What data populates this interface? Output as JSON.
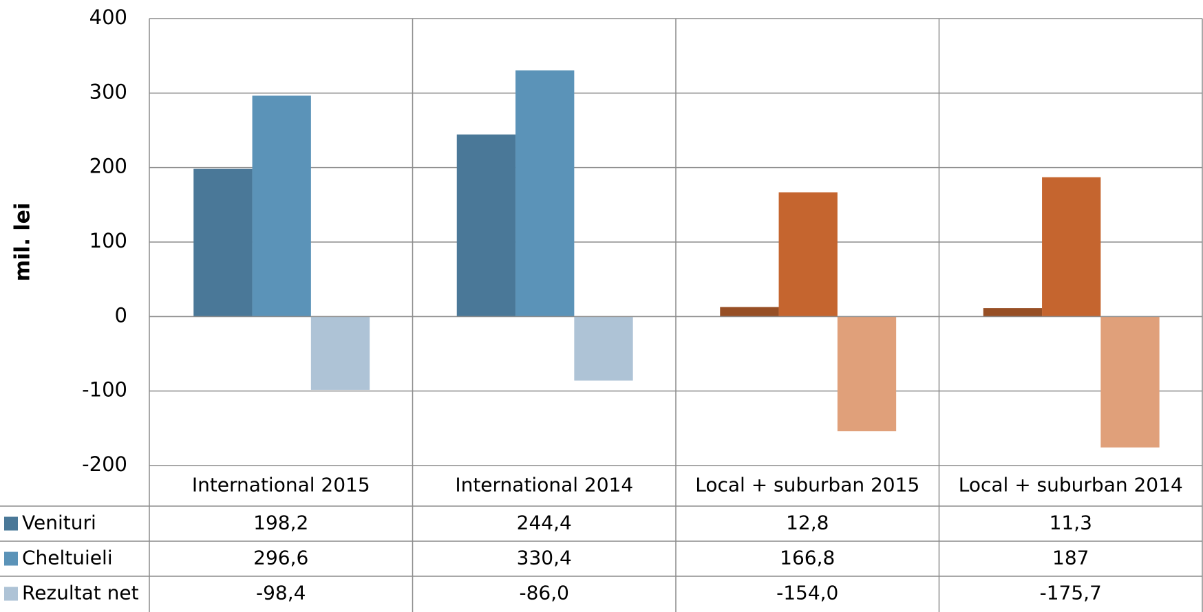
{
  "chart_data": {
    "type": "bar",
    "y_label": "mil. lei",
    "categories": [
      "International 2015",
      "International 2014",
      "Local + suburban 2015",
      "Local + suburban 2014"
    ],
    "series": [
      {
        "name": "Venituri",
        "color": "#4a7898",
        "colors": [
          "#4a7898",
          "#4a7898",
          "#974f25",
          "#974f25"
        ],
        "values": [
          198.2,
          244.4,
          12.8,
          11.3
        ],
        "value_labels": [
          "198,2",
          "244,4",
          "12,8",
          "11,3"
        ]
      },
      {
        "name": "Cheltuieli",
        "color": "#5b93b8",
        "colors": [
          "#5b93b8",
          "#5b93b8",
          "#c5652f",
          "#c5652f"
        ],
        "values": [
          296.6,
          330.4,
          166.8,
          187
        ],
        "value_labels": [
          "296,6",
          "330,4",
          "166,8",
          "187"
        ]
      },
      {
        "name": "Rezultat net",
        "color": "#aec3d6",
        "colors": [
          "#aec3d6",
          "#aec3d6",
          "#e0a07a",
          "#e0a07a"
        ],
        "values": [
          -98.4,
          -86.0,
          -154.0,
          -175.7
        ],
        "value_labels": [
          "-98,4",
          "-86,0",
          "-154,0",
          "-175,7"
        ]
      }
    ],
    "ylim": [
      -200,
      400
    ],
    "yticks": [
      400,
      300,
      200,
      100,
      0,
      -100,
      -200
    ],
    "grid": true
  }
}
